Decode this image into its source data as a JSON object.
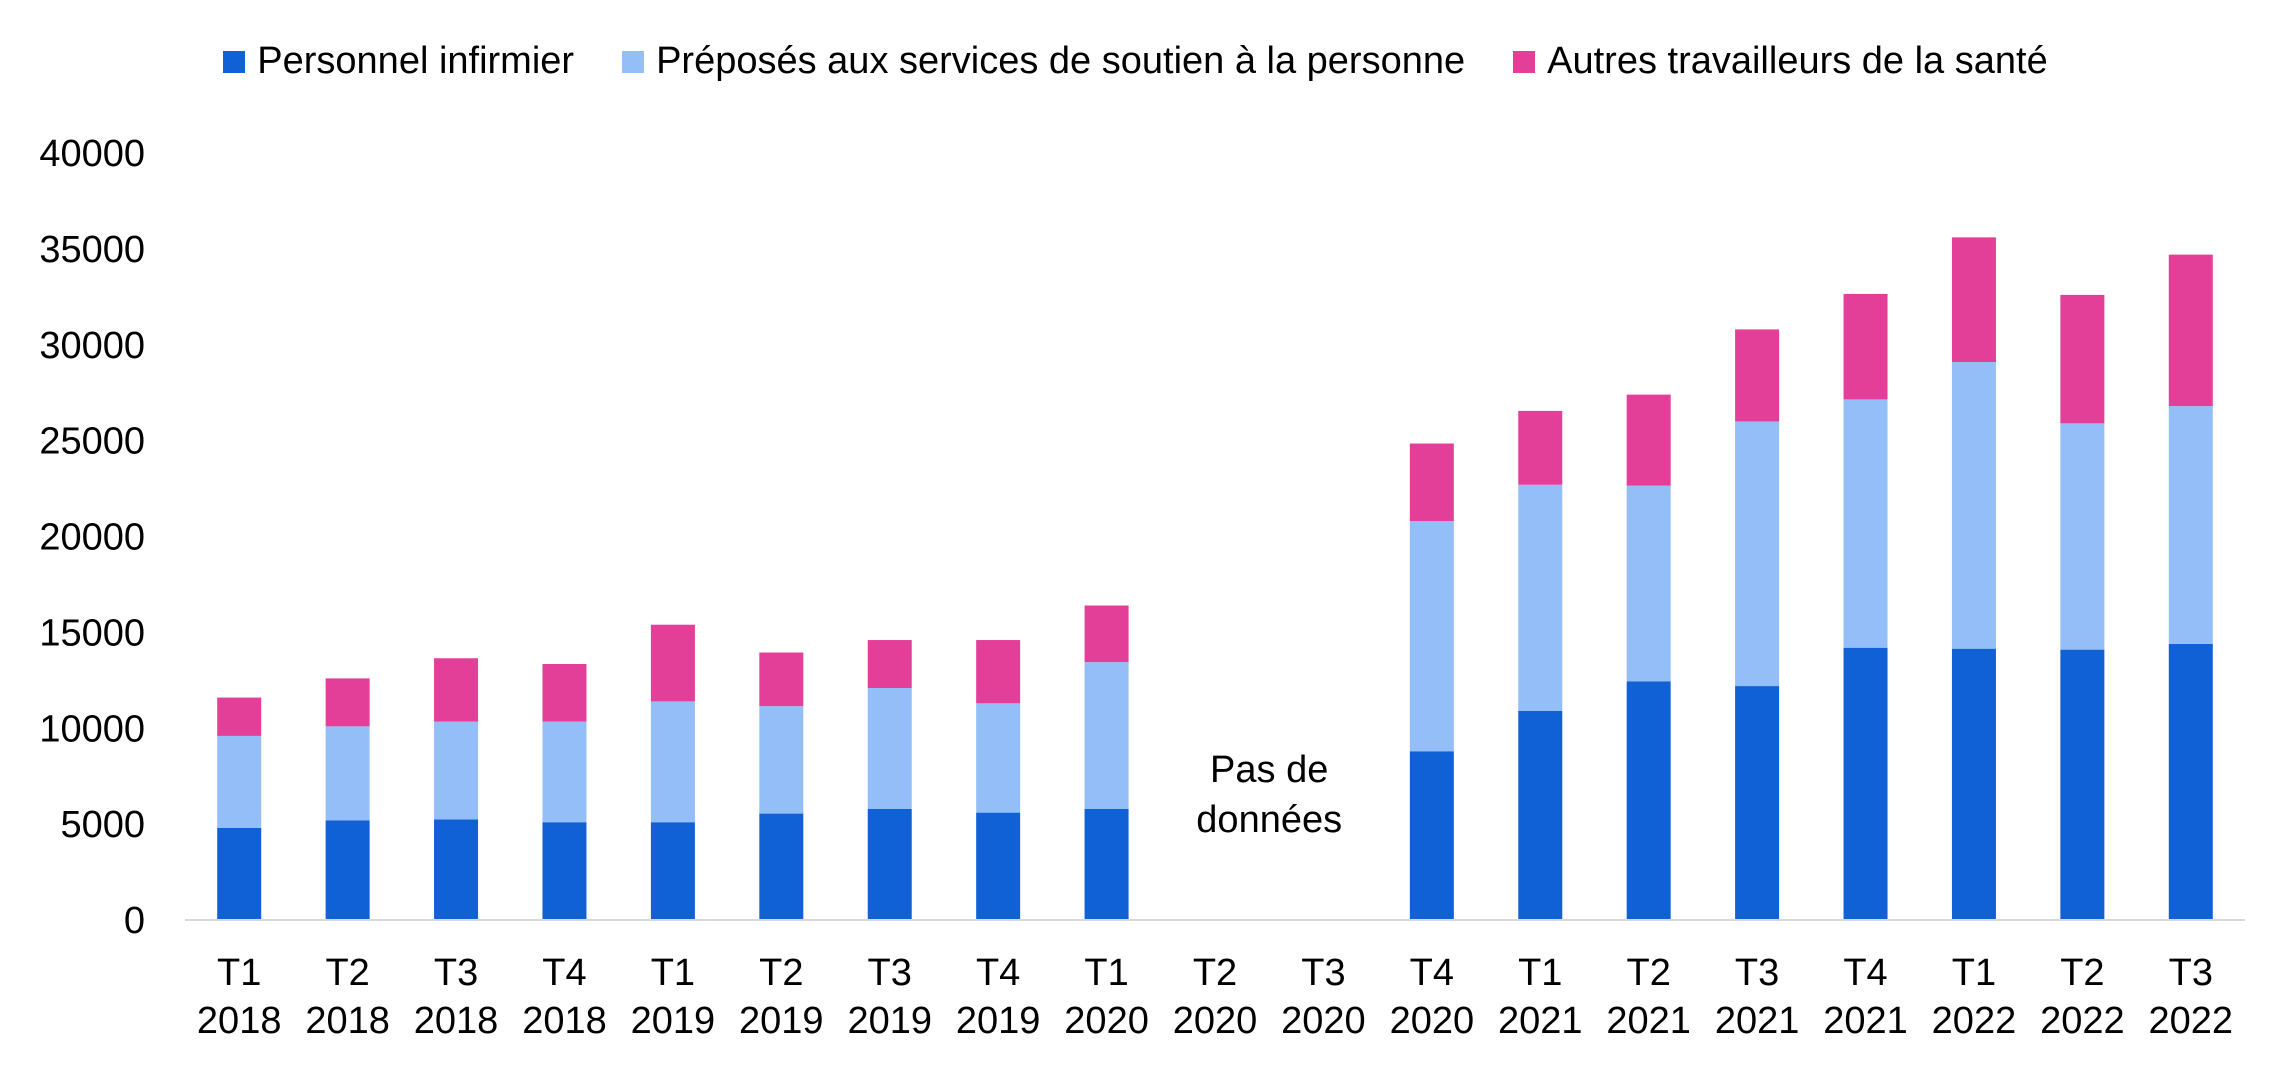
{
  "chart_data": {
    "type": "bar",
    "stacked": true,
    "title": "",
    "xlabel": "",
    "ylabel": "",
    "ylim": [
      0,
      40000
    ],
    "yticks": [
      0,
      5000,
      10000,
      15000,
      20000,
      25000,
      30000,
      35000,
      40000
    ],
    "grid": false,
    "legend_position": "top",
    "categories": [
      [
        "T1",
        "2018"
      ],
      [
        "T2",
        "2018"
      ],
      [
        "T3",
        "2018"
      ],
      [
        "T4",
        "2018"
      ],
      [
        "T1",
        "2019"
      ],
      [
        "T2",
        "2019"
      ],
      [
        "T3",
        "2019"
      ],
      [
        "T4",
        "2019"
      ],
      [
        "T1",
        "2020"
      ],
      [
        "T2",
        "2020"
      ],
      [
        "T3",
        "2020"
      ],
      [
        "T4",
        "2020"
      ],
      [
        "T1",
        "2021"
      ],
      [
        "T2",
        "2021"
      ],
      [
        "T3",
        "2021"
      ],
      [
        "T4",
        "2021"
      ],
      [
        "T1",
        "2022"
      ],
      [
        "T2",
        "2022"
      ],
      [
        "T3",
        "2022"
      ]
    ],
    "series": [
      {
        "name": "Personnel infirmier",
        "color": "#1061D5",
        "values": [
          4800,
          5200,
          5250,
          5100,
          5100,
          5550,
          5800,
          5600,
          5800,
          null,
          null,
          8800,
          10900,
          12450,
          12200,
          14200,
          14150,
          14100,
          14400
        ]
      },
      {
        "name": "Préposés aux services de soutien à la personne",
        "color": "#94BEF7",
        "values": [
          4800,
          4900,
          5100,
          5250,
          6300,
          5600,
          6300,
          5700,
          7650,
          null,
          null,
          12000,
          11800,
          10200,
          13800,
          12950,
          14950,
          11800,
          12400
        ]
      },
      {
        "name": "Autres travailleurs de la santé",
        "color": "#E43F98",
        "values": [
          2000,
          2500,
          3300,
          3000,
          4000,
          2800,
          2500,
          3300,
          2950,
          null,
          null,
          4050,
          3850,
          4750,
          4800,
          5500,
          6500,
          6700,
          7900
        ]
      }
    ],
    "annotation": {
      "lines": [
        "Pas de",
        "données"
      ],
      "categories": [
        "T2 2020",
        "T3 2020"
      ]
    }
  }
}
